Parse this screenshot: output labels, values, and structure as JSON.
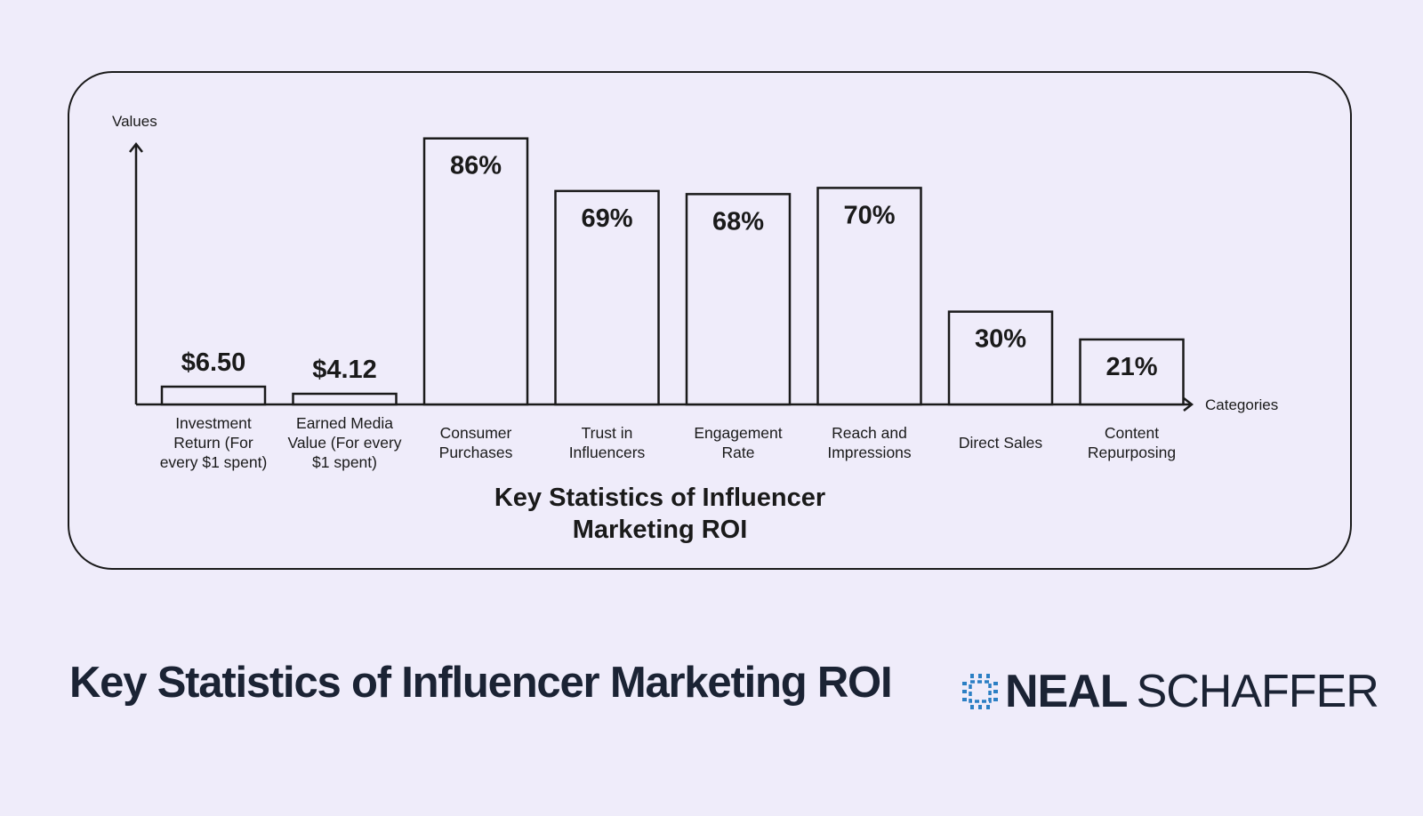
{
  "chart_data": {
    "type": "bar",
    "title": [
      "Key Statistics of Influencer",
      "Marketing ROI"
    ],
    "xlabel": "Categories",
    "ylabel": "Values",
    "categories": [
      [
        "Investment",
        "Return (For",
        "every $1 spent)"
      ],
      [
        "Earned Media",
        "Value (For every",
        "$1 spent)"
      ],
      [
        "Consumer",
        "Purchases"
      ],
      [
        "Trust in",
        "Influencers"
      ],
      [
        "Engagement",
        "Rate"
      ],
      [
        "Reach and",
        "Impressions"
      ],
      [
        "Direct Sales"
      ],
      [
        "Content",
        "Repurposing"
      ]
    ],
    "values": [
      6.5,
      4.12,
      86,
      69,
      68,
      70,
      30,
      21
    ],
    "value_labels": [
      "$6.50",
      "$4.12",
      "86%",
      "69%",
      "68%",
      "70%",
      "30%",
      "21%"
    ],
    "ylim": [
      0,
      100
    ],
    "grid": false,
    "colors": {
      "bar_fill": "#efecfa",
      "stroke": "#1a1a1a"
    }
  },
  "page_title": "Key Statistics of Influencer Marketing ROI",
  "brand": {
    "first": "NEAL",
    "last": "SCHAFFER",
    "icon": "chip-logo-icon",
    "icon_color": "#2b7fc4"
  }
}
